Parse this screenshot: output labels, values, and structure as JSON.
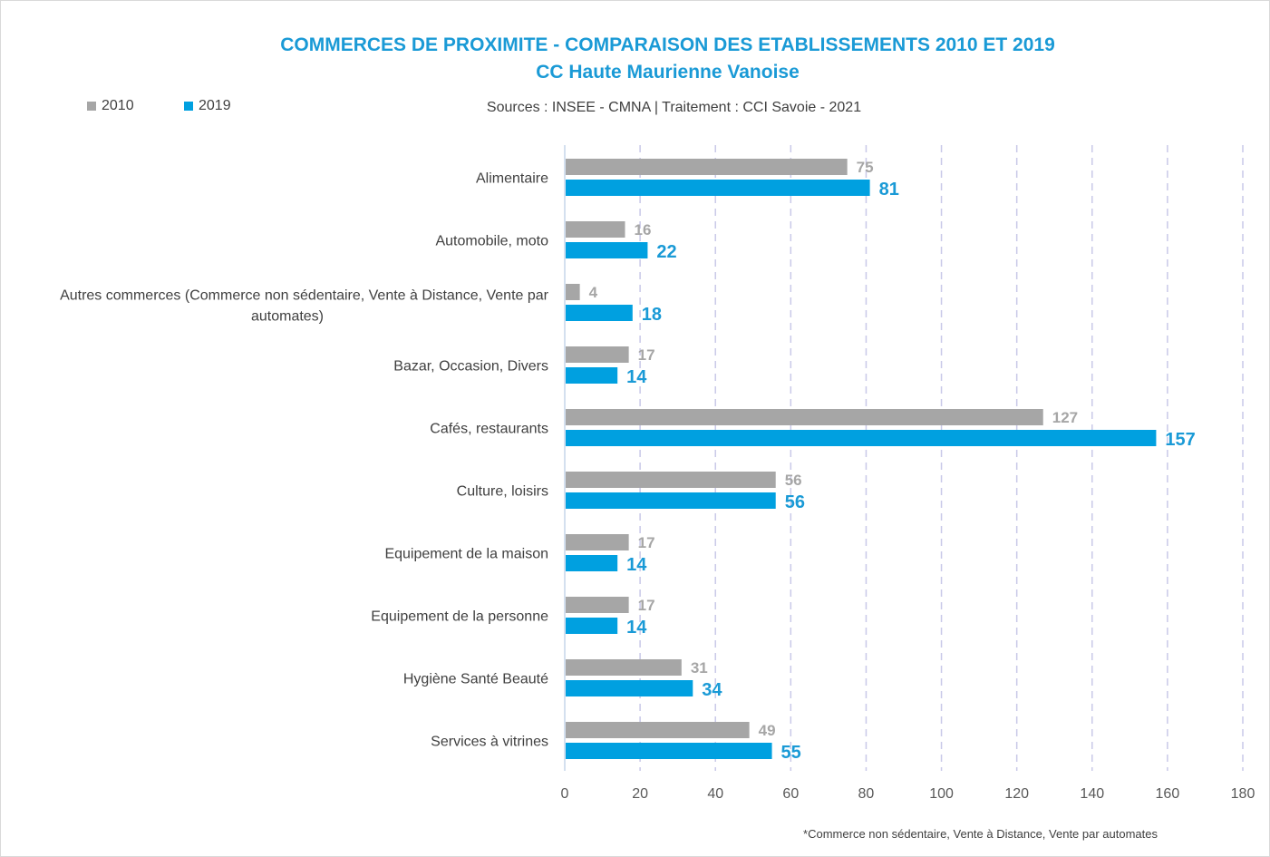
{
  "chart_data": {
    "type": "bar",
    "orientation": "horizontal",
    "title": "COMMERCES DE PROXIMITE - COMPARAISON DES ETABLISSEMENTS 2010 ET 2019",
    "subtitle": "CC Haute Maurienne Vanoise",
    "source": "Sources : INSEE - CMNA  |  Traitement : CCI Savoie - 2021",
    "footnote": "*Commerce non sédentaire, Vente à Distance, Vente par automates",
    "categories": [
      "Alimentaire",
      "Automobile, moto",
      "Autres commerces (Commerce non sédentaire, Vente à Distance, Vente par automates)",
      "Bazar, Occasion, Divers",
      "Cafés, restaurants",
      "Culture, loisirs",
      "Equipement de la maison",
      "Equipement de la personne",
      "Hygiène Santé Beauté",
      "Services à vitrines"
    ],
    "category_lines": [
      [
        "Alimentaire"
      ],
      [
        "Automobile, moto"
      ],
      [
        "Autres commerces (Commerce non sédentaire, Vente à Distance, Vente par",
        "automates)"
      ],
      [
        "Bazar, Occasion, Divers"
      ],
      [
        "Cafés, restaurants"
      ],
      [
        "Culture, loisirs"
      ],
      [
        "Equipement de la maison"
      ],
      [
        "Equipement de la personne"
      ],
      [
        "Hygiène Santé Beauté"
      ],
      [
        "Services à vitrines"
      ]
    ],
    "series": [
      {
        "name": "2010",
        "color": "#a6a6a6",
        "values": [
          75,
          16,
          4,
          17,
          127,
          56,
          17,
          17,
          31,
          49
        ]
      },
      {
        "name": "2019",
        "color": "#00a0e0",
        "values": [
          81,
          22,
          18,
          14,
          157,
          56,
          14,
          14,
          34,
          55
        ]
      }
    ],
    "xlim": [
      0,
      180
    ],
    "xticks": [
      0,
      20,
      40,
      60,
      80,
      100,
      120,
      140,
      160,
      180
    ],
    "grid": "vertical dashed",
    "legend": "top-left"
  }
}
